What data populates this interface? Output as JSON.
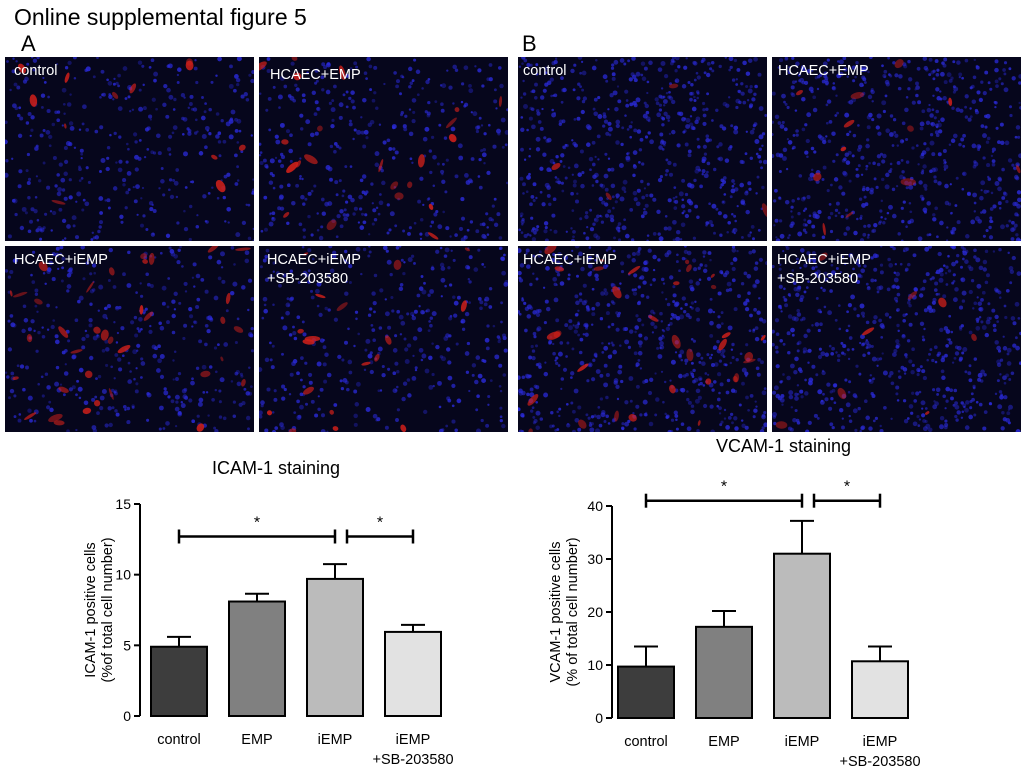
{
  "figure": {
    "title": "Online supplemental figure 5"
  },
  "panels": [
    {
      "letter": "A",
      "images": [
        {
          "label": "control",
          "tint": "icam",
          "red_level": 0.3
        },
        {
          "label": "HCAEC+EMP",
          "tint": "icam",
          "red_level": 0.55
        },
        {
          "label": "HCAEC+iEMP",
          "tint": "icam",
          "red_level": 0.9
        },
        {
          "label": "HCAEC+iEMP\n+SB-203580",
          "tint": "icam",
          "red_level": 0.45
        }
      ]
    },
    {
      "letter": "B",
      "images": [
        {
          "label": "control",
          "tint": "vcam",
          "red_level": 0.1
        },
        {
          "label": "HCAEC+EMP",
          "tint": "vcam",
          "red_level": 0.3
        },
        {
          "label": "HCAEC+iEMP",
          "tint": "vcam",
          "red_level": 0.8
        },
        {
          "label": "HCAEC+iEMP\n+SB-203580",
          "tint": "vcam",
          "red_level": 0.2
        }
      ]
    }
  ],
  "colors": {
    "bar_fills": [
      "#3d3d3d",
      "#808080",
      "#bbbbbb",
      "#e2e2e2"
    ],
    "micro_bg": "#06061c",
    "nuclei": "#2a2ad8",
    "stain": "#d0201a"
  },
  "chart_data": [
    {
      "type": "bar",
      "title": "ICAM-1 staining",
      "ylabel": [
        "ICAM-1 positive cells",
        "(%of total cell number)"
      ],
      "categories": [
        "control",
        "EMP",
        "iEMP",
        "iEMP\n+SB-203580"
      ],
      "values": [
        4.9,
        8.1,
        9.7,
        5.95
      ],
      "errors": [
        0.7,
        0.55,
        1.05,
        0.5
      ],
      "ylim": [
        0,
        15
      ],
      "yticks": [
        0,
        5,
        10,
        15
      ],
      "significance": [
        {
          "from": 0,
          "to": 2,
          "label": "*",
          "at": 12.7
        },
        {
          "from": 2,
          "to": 3,
          "label": "*",
          "at": 12.7
        }
      ]
    },
    {
      "type": "bar",
      "title": "VCAM-1 staining",
      "ylabel": [
        "VCAM-1 positive cells",
        "(% of total cell number)"
      ],
      "categories": [
        "control",
        "EMP",
        "iEMP",
        "iEMP\n+SB-203580"
      ],
      "values": [
        9.7,
        17.2,
        31.0,
        10.7
      ],
      "errors": [
        3.8,
        3.0,
        6.2,
        2.8
      ],
      "ylim": [
        0,
        40
      ],
      "yticks": [
        0,
        10,
        20,
        30,
        40
      ],
      "significance": [
        {
          "from": 0,
          "to": 2,
          "label": "*",
          "at": 41.0
        },
        {
          "from": 2,
          "to": 3,
          "label": "*",
          "at": 41.0
        }
      ]
    }
  ]
}
